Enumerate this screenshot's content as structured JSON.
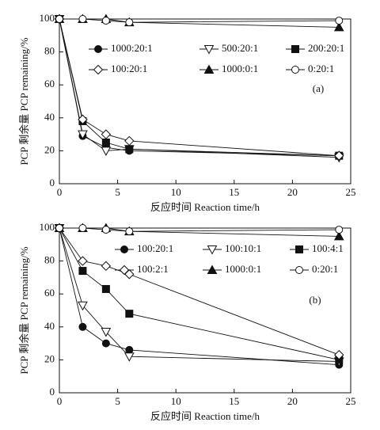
{
  "chart_data": [
    {
      "type": "line",
      "annotation": "(a)",
      "xlabel": "反应时间 Reaction time/h",
      "ylabel": "PCP 剩余量 PCP remaining/%",
      "xlim": [
        0,
        25
      ],
      "ylim": [
        0,
        100
      ],
      "xticks": [
        0,
        5,
        10,
        15,
        20,
        25
      ],
      "yticks": [
        0,
        20,
        40,
        60,
        80,
        100
      ],
      "x": [
        0,
        2,
        4,
        6,
        24
      ],
      "series": [
        {
          "name": "1000:20:1",
          "color": "#111111",
          "marker": "circle",
          "filled": true,
          "values": [
            100,
            29,
            22,
            20,
            17
          ]
        },
        {
          "name": "500:20:1",
          "color": "#111111",
          "marker": "triangle-down",
          "filled": false,
          "values": [
            100,
            30,
            20,
            21,
            16
          ]
        },
        {
          "name": "200:20:1",
          "color": "#111111",
          "marker": "square",
          "filled": true,
          "values": [
            100,
            38,
            25,
            21,
            17
          ]
        },
        {
          "name": "100:20:1",
          "color": "#111111",
          "marker": "diamond",
          "filled": false,
          "values": [
            100,
            39,
            30,
            26,
            17
          ]
        },
        {
          "name": "1000:0:1",
          "color": "#111111",
          "marker": "triangle-up",
          "filled": true,
          "values": [
            100,
            100,
            100,
            98,
            95
          ]
        },
        {
          "name": "0:20:1",
          "color": "#111111",
          "marker": "circle",
          "filled": false,
          "values": [
            100,
            100,
            99,
            98,
            99
          ]
        }
      ]
    },
    {
      "type": "line",
      "annotation": "(b)",
      "xlabel": "反应时间 Reaction time/h",
      "ylabel": "PCP 剩余量 PCP remaining/%",
      "xlim": [
        0,
        25
      ],
      "ylim": [
        0,
        100
      ],
      "xticks": [
        0,
        5,
        10,
        15,
        20,
        25
      ],
      "yticks": [
        0,
        20,
        40,
        60,
        80,
        100
      ],
      "x": [
        0,
        2,
        4,
        6,
        24
      ],
      "series": [
        {
          "name": "100:20:1",
          "color": "#111111",
          "marker": "circle",
          "filled": true,
          "values": [
            100,
            40,
            30,
            26,
            17
          ]
        },
        {
          "name": "100:10:1",
          "color": "#111111",
          "marker": "triangle-down",
          "filled": false,
          "values": [
            100,
            53,
            37,
            22,
            19
          ]
        },
        {
          "name": "100:4:1",
          "color": "#111111",
          "marker": "square",
          "filled": true,
          "values": [
            100,
            74,
            63,
            48,
            20
          ]
        },
        {
          "name": "100:2:1",
          "color": "#111111",
          "marker": "diamond",
          "filled": false,
          "values": [
            100,
            80,
            77,
            72,
            23
          ]
        },
        {
          "name": "1000:0:1",
          "color": "#111111",
          "marker": "triangle-up",
          "filled": true,
          "values": [
            100,
            100,
            100,
            98,
            95
          ]
        },
        {
          "name": "0:20:1",
          "color": "#111111",
          "marker": "circle",
          "filled": false,
          "values": [
            100,
            100,
            99,
            98,
            99
          ]
        }
      ]
    }
  ]
}
